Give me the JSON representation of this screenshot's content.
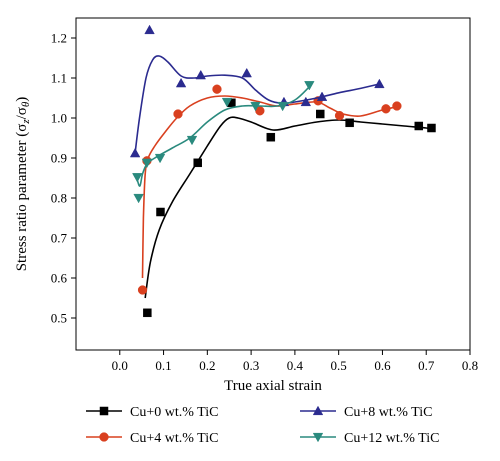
{
  "chart_data": {
    "type": "line",
    "title": "",
    "xlabel": "True axial strain",
    "ylabel_prefix": "Stress ratio parameter (σ",
    "ylabel_sub1": "z",
    "ylabel_mid": "/σ",
    "ylabel_sub2": "θ",
    "ylabel_suffix": ")",
    "xlim": [
      -0.1,
      0.8
    ],
    "ylim": [
      0.42,
      1.25
    ],
    "xticks": [
      0.0,
      0.1,
      0.2,
      0.3,
      0.4,
      0.5,
      0.6,
      0.7,
      0.8
    ],
    "xtick_labels": [
      "0.0",
      "0.1",
      "0.2",
      "0.3",
      "0.4",
      "0.5",
      "0.6",
      "0.7",
      "0.8"
    ],
    "yticks": [
      0.5,
      0.6,
      0.7,
      0.8,
      0.9,
      1.0,
      1.1,
      1.2
    ],
    "ytick_labels": [
      "0.5",
      "0.6",
      "0.7",
      "0.8",
      "0.9",
      "1.0",
      "1.1",
      "1.2"
    ],
    "legend_position": "bottom",
    "series": [
      {
        "name": "Cu+0 wt.% TiC",
        "color": "#000000",
        "marker": "square",
        "points": [
          [
            0.063,
            0.513
          ],
          [
            0.093,
            0.765
          ],
          [
            0.178,
            0.888
          ],
          [
            0.255,
            1.038
          ],
          [
            0.345,
            0.952
          ],
          [
            0.458,
            1.01
          ],
          [
            0.525,
            0.988
          ],
          [
            0.683,
            0.98
          ],
          [
            0.712,
            0.975
          ]
        ],
        "curve": [
          [
            0.058,
            0.55
          ],
          [
            0.07,
            0.64
          ],
          [
            0.09,
            0.72
          ],
          [
            0.12,
            0.79
          ],
          [
            0.16,
            0.86
          ],
          [
            0.2,
            0.93
          ],
          [
            0.23,
            0.98
          ],
          [
            0.25,
            1.0
          ],
          [
            0.27,
            1.0
          ],
          [
            0.3,
            0.99
          ],
          [
            0.35,
            0.97
          ],
          [
            0.4,
            0.98
          ],
          [
            0.45,
            0.99
          ],
          [
            0.5,
            0.995
          ],
          [
            0.55,
            0.99
          ],
          [
            0.6,
            0.985
          ],
          [
            0.65,
            0.98
          ],
          [
            0.7,
            0.975
          ],
          [
            0.712,
            0.973
          ]
        ]
      },
      {
        "name": "Cu+4 wt.% TiC",
        "color": "#d9401f",
        "marker": "circle",
        "points": [
          [
            0.052,
            0.57
          ],
          [
            0.062,
            0.893
          ],
          [
            0.133,
            1.01
          ],
          [
            0.222,
            1.072
          ],
          [
            0.32,
            1.018
          ],
          [
            0.453,
            1.043
          ],
          [
            0.502,
            1.006
          ],
          [
            0.608,
            1.023
          ],
          [
            0.633,
            1.03
          ]
        ],
        "curve": [
          [
            0.052,
            0.6
          ],
          [
            0.054,
            0.75
          ],
          [
            0.058,
            0.86
          ],
          [
            0.065,
            0.9
          ],
          [
            0.08,
            0.93
          ],
          [
            0.1,
            0.96
          ],
          [
            0.13,
            1.0
          ],
          [
            0.16,
            1.03
          ],
          [
            0.2,
            1.05
          ],
          [
            0.24,
            1.055
          ],
          [
            0.28,
            1.05
          ],
          [
            0.32,
            1.04
          ],
          [
            0.36,
            1.03
          ],
          [
            0.4,
            1.035
          ],
          [
            0.45,
            1.04
          ],
          [
            0.48,
            1.025
          ],
          [
            0.51,
            1.01
          ],
          [
            0.55,
            1.005
          ],
          [
            0.6,
            1.02
          ],
          [
            0.633,
            1.028
          ]
        ]
      },
      {
        "name": "Cu+8 wt.% TiC",
        "color": "#2b2b8f",
        "marker": "triangle-up",
        "points": [
          [
            0.035,
            0.912
          ],
          [
            0.068,
            1.22
          ],
          [
            0.14,
            1.087
          ],
          [
            0.185,
            1.107
          ],
          [
            0.29,
            1.112
          ],
          [
            0.375,
            1.04
          ],
          [
            0.425,
            1.04
          ],
          [
            0.462,
            1.053
          ],
          [
            0.593,
            1.085
          ]
        ],
        "curve": [
          [
            0.035,
            0.912
          ],
          [
            0.045,
            1.0
          ],
          [
            0.06,
            1.1
          ],
          [
            0.075,
            1.145
          ],
          [
            0.09,
            1.155
          ],
          [
            0.11,
            1.14
          ],
          [
            0.14,
            1.105
          ],
          [
            0.17,
            1.1
          ],
          [
            0.2,
            1.105
          ],
          [
            0.24,
            1.107
          ],
          [
            0.28,
            1.1
          ],
          [
            0.31,
            1.07
          ],
          [
            0.34,
            1.045
          ],
          [
            0.37,
            1.037
          ],
          [
            0.4,
            1.04
          ],
          [
            0.45,
            1.05
          ],
          [
            0.5,
            1.063
          ],
          [
            0.55,
            1.074
          ],
          [
            0.593,
            1.085
          ]
        ]
      },
      {
        "name": "Cu+12 wt.% TiC",
        "color": "#2a8a7e",
        "marker": "triangle-down",
        "points": [
          [
            0.04,
            0.852
          ],
          [
            0.043,
            0.8
          ],
          [
            0.062,
            0.888
          ],
          [
            0.092,
            0.9
          ],
          [
            0.165,
            0.945
          ],
          [
            0.245,
            1.04
          ],
          [
            0.31,
            1.03
          ],
          [
            0.372,
            1.03
          ],
          [
            0.433,
            1.082
          ]
        ],
        "curve": [
          [
            0.04,
            0.845
          ],
          [
            0.046,
            0.83
          ],
          [
            0.052,
            0.86
          ],
          [
            0.062,
            0.885
          ],
          [
            0.08,
            0.9
          ],
          [
            0.12,
            0.925
          ],
          [
            0.16,
            0.95
          ],
          [
            0.2,
            0.99
          ],
          [
            0.24,
            1.02
          ],
          [
            0.28,
            1.03
          ],
          [
            0.32,
            1.03
          ],
          [
            0.36,
            1.03
          ],
          [
            0.4,
            1.045
          ],
          [
            0.433,
            1.078
          ]
        ]
      }
    ]
  }
}
